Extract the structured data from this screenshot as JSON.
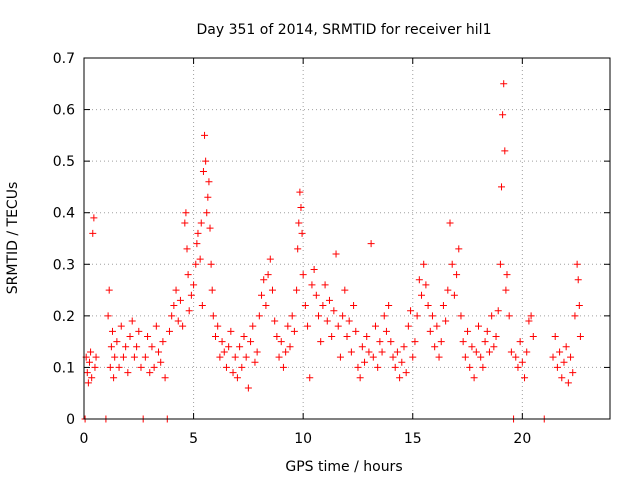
{
  "chart_data": {
    "type": "scatter",
    "title": "Day 351 of 2014, SRMTID for receiver hil1",
    "xlabel": "GPS time / hours",
    "ylabel": "SRMTID / TECUs",
    "xlim": [
      0,
      24
    ],
    "ylim": [
      0,
      0.7
    ],
    "x_ticks": [
      0,
      5,
      10,
      15,
      20
    ],
    "x_tick_labels": [
      "0",
      "5",
      "10",
      "15",
      "20"
    ],
    "y_ticks": [
      0,
      0.1,
      0.2,
      0.3,
      0.4,
      0.5,
      0.6,
      0.7
    ],
    "y_tick_labels": [
      "0",
      "0.1",
      "0.2",
      "0.3",
      "0.4",
      "0.5",
      "0.6",
      "0.7"
    ],
    "grid": true,
    "marker": "+",
    "series": [
      {
        "name": "SRMTID",
        "color": "#ff0000",
        "points": [
          [
            0.05,
            0.0
          ],
          [
            0.1,
            0.12
          ],
          [
            0.15,
            0.09
          ],
          [
            0.2,
            0.07
          ],
          [
            0.25,
            0.11
          ],
          [
            0.3,
            0.13
          ],
          [
            0.35,
            0.08
          ],
          [
            0.4,
            0.36
          ],
          [
            0.45,
            0.39
          ],
          [
            0.5,
            0.1
          ],
          [
            0.55,
            0.12
          ],
          [
            1.0,
            0.0
          ],
          [
            1.1,
            0.2
          ],
          [
            1.15,
            0.25
          ],
          [
            1.2,
            0.1
          ],
          [
            1.25,
            0.14
          ],
          [
            1.3,
            0.17
          ],
          [
            1.35,
            0.08
          ],
          [
            1.4,
            0.12
          ],
          [
            1.5,
            0.15
          ],
          [
            1.6,
            0.1
          ],
          [
            1.7,
            0.18
          ],
          [
            1.8,
            0.12
          ],
          [
            1.9,
            0.14
          ],
          [
            2.0,
            0.09
          ],
          [
            2.1,
            0.16
          ],
          [
            2.2,
            0.19
          ],
          [
            2.3,
            0.12
          ],
          [
            2.4,
            0.14
          ],
          [
            2.5,
            0.17
          ],
          [
            2.6,
            0.1
          ],
          [
            2.7,
            0.0
          ],
          [
            2.8,
            0.12
          ],
          [
            2.9,
            0.16
          ],
          [
            3.0,
            0.09
          ],
          [
            3.1,
            0.14
          ],
          [
            3.2,
            0.1
          ],
          [
            3.3,
            0.18
          ],
          [
            3.4,
            0.13
          ],
          [
            3.5,
            0.11
          ],
          [
            3.6,
            0.15
          ],
          [
            3.7,
            0.08
          ],
          [
            3.8,
            0.0
          ],
          [
            3.9,
            0.17
          ],
          [
            4.0,
            0.2
          ],
          [
            4.1,
            0.22
          ],
          [
            4.2,
            0.25
          ],
          [
            4.3,
            0.19
          ],
          [
            4.4,
            0.23
          ],
          [
            4.5,
            0.18
          ],
          [
            4.6,
            0.38
          ],
          [
            4.65,
            0.4
          ],
          [
            4.7,
            0.33
          ],
          [
            4.75,
            0.28
          ],
          [
            4.8,
            0.21
          ],
          [
            4.9,
            0.24
          ],
          [
            5.0,
            0.26
          ],
          [
            5.1,
            0.3
          ],
          [
            5.15,
            0.34
          ],
          [
            5.2,
            0.36
          ],
          [
            5.3,
            0.31
          ],
          [
            5.35,
            0.38
          ],
          [
            5.4,
            0.22
          ],
          [
            5.45,
            0.48
          ],
          [
            5.5,
            0.55
          ],
          [
            5.55,
            0.5
          ],
          [
            5.6,
            0.4
          ],
          [
            5.65,
            0.43
          ],
          [
            5.7,
            0.46
          ],
          [
            5.75,
            0.37
          ],
          [
            5.8,
            0.3
          ],
          [
            5.85,
            0.25
          ],
          [
            5.9,
            0.2
          ],
          [
            6.0,
            0.16
          ],
          [
            6.1,
            0.18
          ],
          [
            6.2,
            0.12
          ],
          [
            6.3,
            0.15
          ],
          [
            6.4,
            0.13
          ],
          [
            6.5,
            0.1
          ],
          [
            6.6,
            0.14
          ],
          [
            6.7,
            0.17
          ],
          [
            6.8,
            0.09
          ],
          [
            6.9,
            0.12
          ],
          [
            7.0,
            0.08
          ],
          [
            7.1,
            0.14
          ],
          [
            7.2,
            0.1
          ],
          [
            7.3,
            0.16
          ],
          [
            7.4,
            0.12
          ],
          [
            7.5,
            0.06
          ],
          [
            7.6,
            0.15
          ],
          [
            7.7,
            0.18
          ],
          [
            7.8,
            0.11
          ],
          [
            7.9,
            0.13
          ],
          [
            8.0,
            0.2
          ],
          [
            8.1,
            0.24
          ],
          [
            8.2,
            0.27
          ],
          [
            8.3,
            0.22
          ],
          [
            8.4,
            0.28
          ],
          [
            8.5,
            0.31
          ],
          [
            8.6,
            0.25
          ],
          [
            8.7,
            0.19
          ],
          [
            8.8,
            0.16
          ],
          [
            8.9,
            0.12
          ],
          [
            9.0,
            0.15
          ],
          [
            9.1,
            0.1
          ],
          [
            9.2,
            0.13
          ],
          [
            9.3,
            0.18
          ],
          [
            9.4,
            0.14
          ],
          [
            9.5,
            0.2
          ],
          [
            9.6,
            0.17
          ],
          [
            9.7,
            0.25
          ],
          [
            9.75,
            0.33
          ],
          [
            9.8,
            0.38
          ],
          [
            9.85,
            0.44
          ],
          [
            9.9,
            0.41
          ],
          [
            9.95,
            0.36
          ],
          [
            10.0,
            0.28
          ],
          [
            10.1,
            0.22
          ],
          [
            10.2,
            0.18
          ],
          [
            10.3,
            0.08
          ],
          [
            10.4,
            0.26
          ],
          [
            10.5,
            0.29
          ],
          [
            10.6,
            0.24
          ],
          [
            10.7,
            0.2
          ],
          [
            10.8,
            0.15
          ],
          [
            10.9,
            0.22
          ],
          [
            11.0,
            0.26
          ],
          [
            11.1,
            0.19
          ],
          [
            11.2,
            0.23
          ],
          [
            11.3,
            0.16
          ],
          [
            11.4,
            0.21
          ],
          [
            11.5,
            0.32
          ],
          [
            11.6,
            0.18
          ],
          [
            11.7,
            0.12
          ],
          [
            11.8,
            0.2
          ],
          [
            11.9,
            0.25
          ],
          [
            12.0,
            0.16
          ],
          [
            12.1,
            0.19
          ],
          [
            12.2,
            0.13
          ],
          [
            12.3,
            0.22
          ],
          [
            12.4,
            0.17
          ],
          [
            12.5,
            0.1
          ],
          [
            12.6,
            0.08
          ],
          [
            12.7,
            0.14
          ],
          [
            12.8,
            0.11
          ],
          [
            12.9,
            0.16
          ],
          [
            13.0,
            0.13
          ],
          [
            13.1,
            0.34
          ],
          [
            13.2,
            0.12
          ],
          [
            13.3,
            0.18
          ],
          [
            13.4,
            0.1
          ],
          [
            13.5,
            0.15
          ],
          [
            13.6,
            0.13
          ],
          [
            13.7,
            0.2
          ],
          [
            13.8,
            0.17
          ],
          [
            13.9,
            0.22
          ],
          [
            14.0,
            0.15
          ],
          [
            14.1,
            0.12
          ],
          [
            14.2,
            0.1
          ],
          [
            14.3,
            0.13
          ],
          [
            14.4,
            0.08
          ],
          [
            14.5,
            0.11
          ],
          [
            14.6,
            0.14
          ],
          [
            14.7,
            0.09
          ],
          [
            14.8,
            0.18
          ],
          [
            14.9,
            0.21
          ],
          [
            15.0,
            0.12
          ],
          [
            15.1,
            0.15
          ],
          [
            15.2,
            0.2
          ],
          [
            15.3,
            0.27
          ],
          [
            15.4,
            0.24
          ],
          [
            15.5,
            0.3
          ],
          [
            15.6,
            0.26
          ],
          [
            15.7,
            0.22
          ],
          [
            15.8,
            0.17
          ],
          [
            15.9,
            0.2
          ],
          [
            16.0,
            0.14
          ],
          [
            16.1,
            0.18
          ],
          [
            16.2,
            0.12
          ],
          [
            16.3,
            0.15
          ],
          [
            16.4,
            0.22
          ],
          [
            16.5,
            0.19
          ],
          [
            16.6,
            0.25
          ],
          [
            16.7,
            0.38
          ],
          [
            16.8,
            0.3
          ],
          [
            16.9,
            0.24
          ],
          [
            17.0,
            0.28
          ],
          [
            17.1,
            0.33
          ],
          [
            17.2,
            0.2
          ],
          [
            17.3,
            0.15
          ],
          [
            17.4,
            0.12
          ],
          [
            17.5,
            0.17
          ],
          [
            17.6,
            0.1
          ],
          [
            17.7,
            0.14
          ],
          [
            17.8,
            0.08
          ],
          [
            17.9,
            0.13
          ],
          [
            18.0,
            0.18
          ],
          [
            18.1,
            0.12
          ],
          [
            18.2,
            0.1
          ],
          [
            18.3,
            0.15
          ],
          [
            18.4,
            0.17
          ],
          [
            18.5,
            0.13
          ],
          [
            18.6,
            0.2
          ],
          [
            18.7,
            0.14
          ],
          [
            18.8,
            0.16
          ],
          [
            18.9,
            0.21
          ],
          [
            19.0,
            0.3
          ],
          [
            19.05,
            0.45
          ],
          [
            19.1,
            0.59
          ],
          [
            19.15,
            0.65
          ],
          [
            19.2,
            0.52
          ],
          [
            19.25,
            0.25
          ],
          [
            19.3,
            0.28
          ],
          [
            19.4,
            0.2
          ],
          [
            19.5,
            0.13
          ],
          [
            19.6,
            0.0
          ],
          [
            19.7,
            0.12
          ],
          [
            19.8,
            0.1
          ],
          [
            19.9,
            0.15
          ],
          [
            20.0,
            0.11
          ],
          [
            20.1,
            0.08
          ],
          [
            20.2,
            0.13
          ],
          [
            20.3,
            0.19
          ],
          [
            20.4,
            0.2
          ],
          [
            20.5,
            0.16
          ],
          [
            21.0,
            0.0
          ],
          [
            21.4,
            0.12
          ],
          [
            21.5,
            0.16
          ],
          [
            21.6,
            0.1
          ],
          [
            21.7,
            0.13
          ],
          [
            21.8,
            0.08
          ],
          [
            21.9,
            0.11
          ],
          [
            22.0,
            0.14
          ],
          [
            22.1,
            0.07
          ],
          [
            22.2,
            0.12
          ],
          [
            22.3,
            0.09
          ],
          [
            22.4,
            0.2
          ],
          [
            22.5,
            0.3
          ],
          [
            22.55,
            0.27
          ],
          [
            22.6,
            0.22
          ],
          [
            22.65,
            0.16
          ]
        ]
      }
    ]
  }
}
